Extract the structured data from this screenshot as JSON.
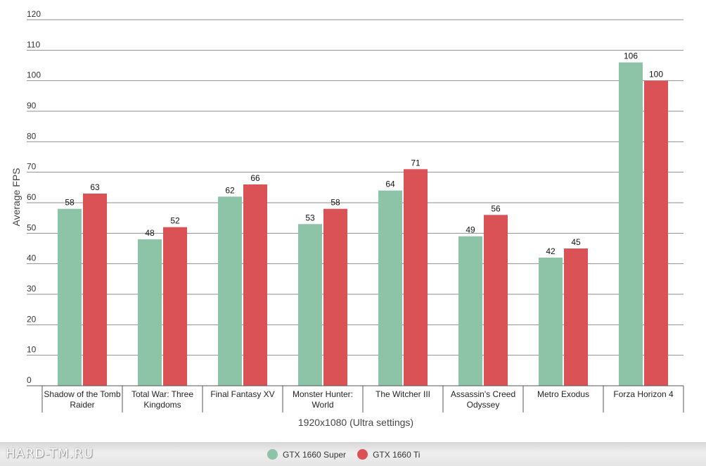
{
  "chart_data": {
    "type": "bar",
    "title": "",
    "xlabel": "1920x1080 (Ultra settings)",
    "ylabel": "Average FPS",
    "ylim": [
      0,
      120
    ],
    "yticks": [
      0,
      10,
      20,
      30,
      40,
      50,
      60,
      70,
      80,
      90,
      100,
      110,
      120
    ],
    "grid": true,
    "legend_position": "bottom",
    "categories": [
      [
        "Shadow of the Tomb",
        "Raider"
      ],
      [
        "Total War: Three",
        "Kingdoms"
      ],
      [
        "Final Fantasy XV"
      ],
      [
        "Monster Hunter:",
        "World"
      ],
      [
        "The Witcher III"
      ],
      [
        "Assassin's Creed",
        "Odyssey"
      ],
      [
        "Metro Exodus"
      ],
      [
        "Forza Horizon 4"
      ]
    ],
    "series": [
      {
        "name": "GTX 1660 Super",
        "color": "#8dc3a7",
        "values": [
          58,
          48,
          62,
          53,
          64,
          49,
          42,
          106
        ]
      },
      {
        "name": "GTX 1660 Ti",
        "color": "#db5256",
        "values": [
          63,
          52,
          66,
          58,
          71,
          56,
          45,
          100
        ]
      }
    ]
  },
  "footer": {
    "watermark": "HARD-TM.RU"
  }
}
